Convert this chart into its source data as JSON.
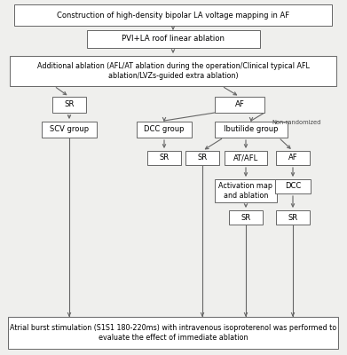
{
  "bg_color": "#efefed",
  "box_color": "white",
  "box_edge": "#666666",
  "arrow_color": "#666666",
  "title": "Construction of high-density bipolar LA voltage mapping in AF",
  "box1": "PVI+LA roof linear ablation",
  "box2": "Additional ablation (AFL/AT ablation during the operation/Clinical typical AFL\nablation/LVZs-guided extra ablation)",
  "sr_left": "SR",
  "scv": "SCV group",
  "af_box": "AF",
  "non_rand": "Non-randomized",
  "dcc_group": "DCC group",
  "ibutilide": "Ibutilide group",
  "sr_dcc": "SR",
  "sr_ib1": "SR",
  "at_afl": "AT/AFL",
  "af_right": "AF",
  "activation": "Activation map\nand ablation",
  "dcc_bottom": "DCC",
  "sr_act": "SR",
  "sr_dcc2": "SR",
  "bottom": "Atrial burst stimulation (S1S1 180-220ms) with intravenous isoproterenol was performed to\nevaluate the effect of immediate ablation"
}
